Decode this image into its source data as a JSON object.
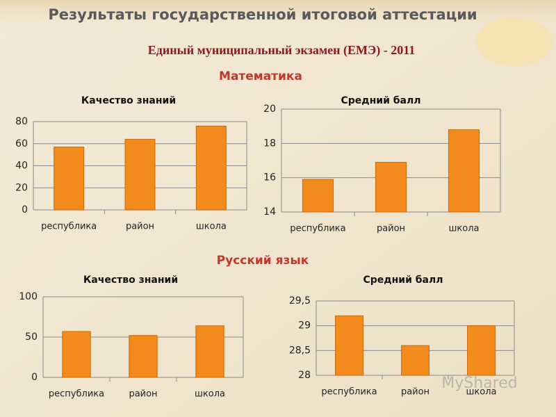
{
  "header": {
    "title": "Результаты государственной итоговой аттестации",
    "subtitle": "Единый муниципальный экзамен (ЕМЭ) - 2011"
  },
  "sections": [
    "Математика",
    "Русский язык"
  ],
  "watermark": "MyShared",
  "chart_data": [
    {
      "type": "bar",
      "title": "Качество знаний",
      "categories": [
        "республика",
        "район",
        "школа"
      ],
      "values": [
        57,
        64,
        76
      ],
      "color": "#f28a1c",
      "ylim": [
        0,
        80
      ],
      "yticks": [
        0,
        20,
        40,
        60,
        80
      ],
      "grid": true
    },
    {
      "type": "bar",
      "title": "Средний балл",
      "categories": [
        "республика",
        "район",
        "школа"
      ],
      "values": [
        15.9,
        16.9,
        18.8
      ],
      "color": "#f28a1c",
      "ylim": [
        14,
        20
      ],
      "yticks": [
        14,
        16,
        18,
        20
      ],
      "grid": true
    },
    {
      "type": "bar",
      "title": "Качество знаний",
      "categories": [
        "республика",
        "район",
        "школа"
      ],
      "values": [
        57,
        52,
        64
      ],
      "color": "#f28a1c",
      "ylim": [
        0,
        100
      ],
      "yticks": [
        0,
        50,
        100
      ],
      "grid": true
    },
    {
      "type": "bar",
      "title": "Средний балл",
      "categories": [
        "республика",
        "район",
        "школа"
      ],
      "values": [
        29.2,
        28.6,
        29.0
      ],
      "color": "#f28a1c",
      "ylim": [
        28,
        29.5
      ],
      "yticks": [
        28,
        {
          "value": 28.5,
          "label": "28,5"
        },
        29,
        {
          "value": 29.5,
          "label": "29,5"
        }
      ],
      "grid": true
    }
  ]
}
